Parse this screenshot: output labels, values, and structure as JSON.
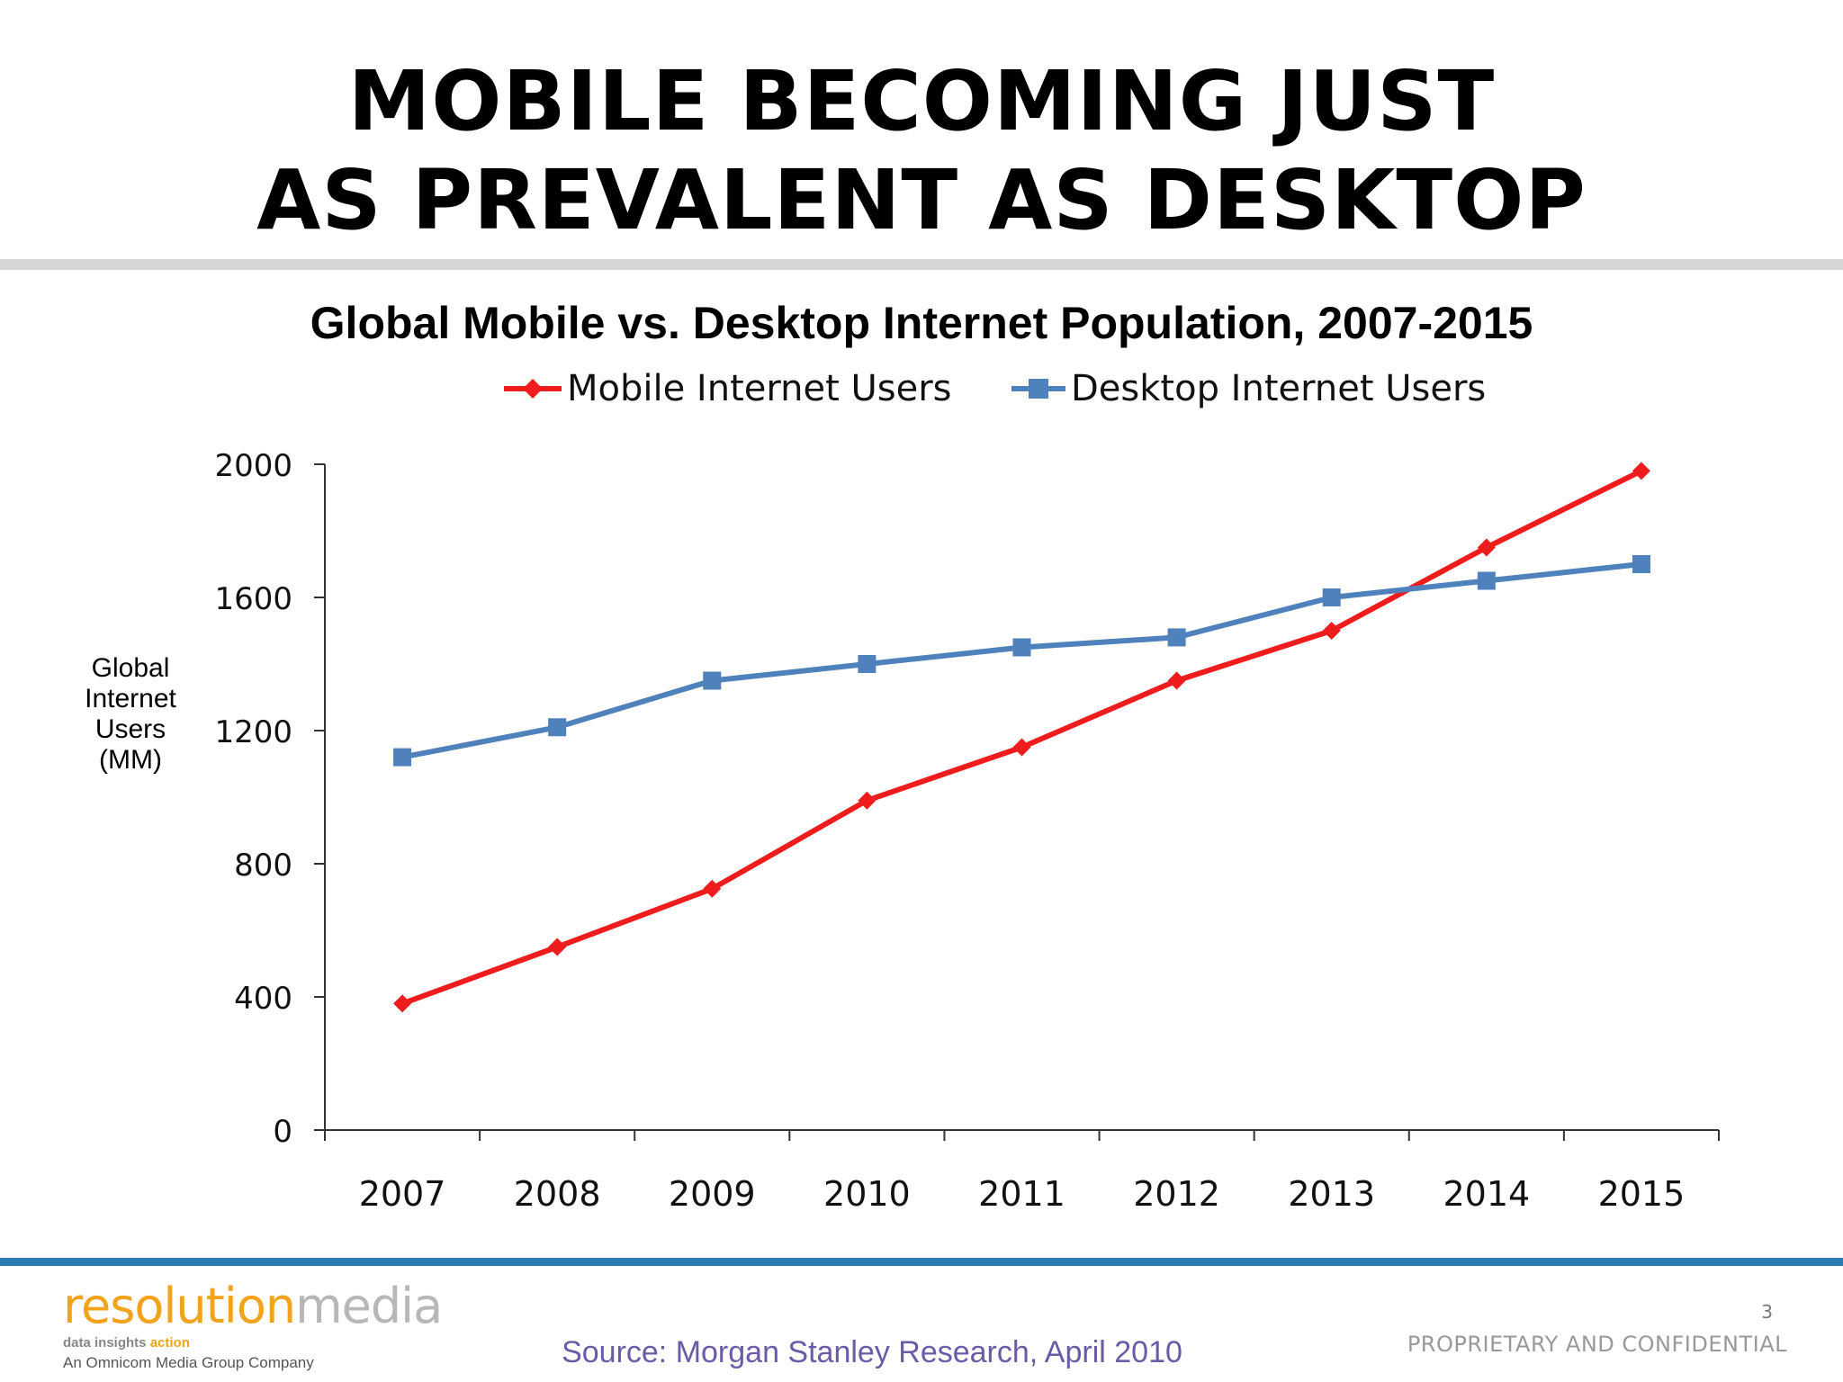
{
  "slide": {
    "title_lines": [
      "MOBILE BECOMING JUST",
      "AS PREVALENT AS DESKTOP"
    ],
    "page_number": "3",
    "confidential": "PROPRIETARY AND CONFIDENTIAL",
    "source": "Source: Morgan Stanley Research, April 2010",
    "logo": {
      "word_part1": "resolution",
      "word_part2": "media",
      "tagline_part1": "data insights ",
      "tagline_part2": "action",
      "subtitle": "An Omnicom Media Group Company"
    }
  },
  "chart_data": {
    "type": "line",
    "title": "Global Mobile vs. Desktop Internet Population, 2007-2015",
    "ylabel_lines": [
      "Global",
      "Internet",
      "Users",
      "(MM)"
    ],
    "xlabel": "",
    "categories": [
      "2007",
      "2008",
      "2009",
      "2010",
      "2011",
      "2012",
      "2013",
      "2014",
      "2015"
    ],
    "ylim": [
      0,
      2000
    ],
    "yticks": [
      0,
      400,
      800,
      1200,
      1600,
      2000
    ],
    "grid": false,
    "legend_position": "top-center",
    "series": [
      {
        "name": "Mobile Internet Users",
        "color": "#ee1c1c",
        "marker": "diamond",
        "values": [
          380,
          550,
          725,
          990,
          1150,
          1350,
          1500,
          1750,
          1980
        ]
      },
      {
        "name": "Desktop Internet Users",
        "color": "#4f81bd",
        "marker": "square",
        "values": [
          1120,
          1210,
          1350,
          1400,
          1450,
          1480,
          1600,
          1650,
          1700
        ]
      }
    ]
  }
}
